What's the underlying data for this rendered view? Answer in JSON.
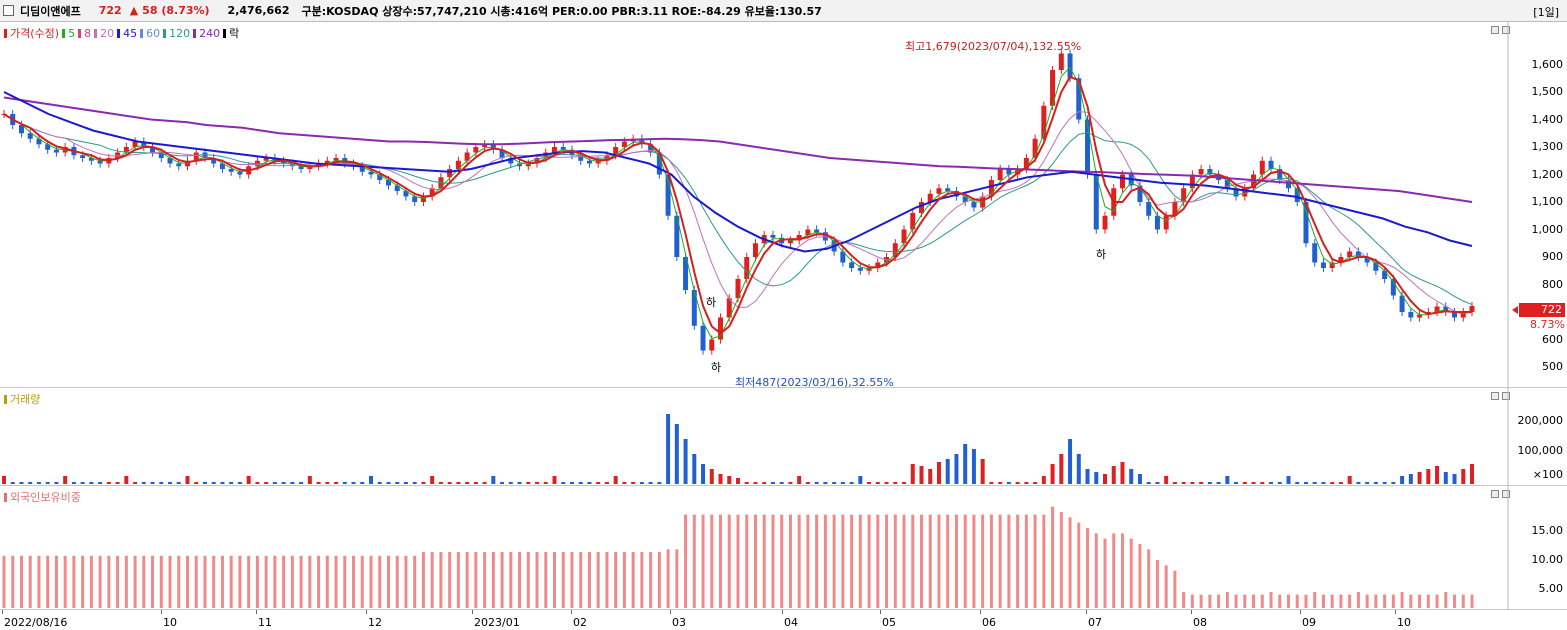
{
  "header": {
    "name": "디딤이앤에프",
    "price": "722",
    "arrow": "▲",
    "change": "58",
    "change_pct": "(8.73%)",
    "volume": "2,476,662",
    "info": "구분:KOSDAQ 상장수:57,747,210 시총:416억 PER:0.00 PBR:3.11 ROE:-84.29 유보율:130.57",
    "period": "[1일]"
  },
  "price_panel": {
    "legend": [
      {
        "label": "가격(수정)",
        "color": "#d61f1f"
      },
      {
        "label": "5",
        "color": "#22aa22"
      },
      {
        "label": "8",
        "color": "#e0407a"
      },
      {
        "label": "20",
        "color": "#c070c0"
      },
      {
        "label": "45",
        "color": "#1a1ad0"
      },
      {
        "label": "60",
        "color": "#6a8ad0"
      },
      {
        "label": "120",
        "color": "#2a9a8a"
      },
      {
        "label": "240",
        "color": "#8a2ab0"
      },
      {
        "label": "락",
        "color": "#000000"
      }
    ],
    "high_note": "최고1,679(2023/07/04),132.55%",
    "low_note": "최저487(2023/03/16),32.55%",
    "ha_marker": "하",
    "price_tag": "722",
    "pct_tag": "8.73%",
    "y_ticks": [
      "1,600",
      "1,500",
      "1,400",
      "1,300",
      "1,200",
      "1,100",
      "1,000",
      "900",
      "800",
      "700",
      "600",
      "500"
    ]
  },
  "volume_panel": {
    "label": "거래량",
    "y_ticks": [
      "200,000",
      "100,000",
      "×100"
    ]
  },
  "foreign_panel": {
    "label": "외국인보유비중",
    "y_ticks": [
      "15.00",
      "10.00",
      "5.00"
    ]
  },
  "x_labels": [
    "2022/08/16",
    "10",
    "11",
    "12",
    "2023/01",
    "02",
    "03",
    "04",
    "05",
    "06",
    "07",
    "08",
    "09",
    "10"
  ],
  "chart_data": {
    "type": "candlestick",
    "ylim": [
      460,
      1700
    ],
    "close_series": [
      1420,
      1380,
      1350,
      1330,
      1310,
      1290,
      1280,
      1300,
      1270,
      1260,
      1250,
      1240,
      1260,
      1280,
      1300,
      1320,
      1300,
      1280,
      1260,
      1240,
      1230,
      1250,
      1280,
      1260,
      1240,
      1220,
      1210,
      1200,
      1230,
      1250,
      1260,
      1250,
      1240,
      1230,
      1220,
      1230,
      1240,
      1250,
      1260,
      1240,
      1230,
      1210,
      1200,
      1180,
      1160,
      1140,
      1120,
      1100,
      1120,
      1150,
      1190,
      1220,
      1250,
      1280,
      1300,
      1310,
      1290,
      1260,
      1240,
      1230,
      1240,
      1260,
      1280,
      1300,
      1290,
      1270,
      1250,
      1240,
      1250,
      1270,
      1300,
      1320,
      1330,
      1310,
      1280,
      1200,
      1050,
      900,
      780,
      650,
      560,
      600,
      680,
      750,
      820,
      900,
      950,
      980,
      970,
      950,
      960,
      980,
      1000,
      990,
      960,
      920,
      880,
      860,
      850,
      860,
      880,
      900,
      950,
      1000,
      1060,
      1100,
      1130,
      1150,
      1140,
      1120,
      1100,
      1080,
      1120,
      1180,
      1220,
      1200,
      1220,
      1260,
      1330,
      1450,
      1580,
      1640,
      1550,
      1400,
      1200,
      1000,
      1050,
      1150,
      1200,
      1160,
      1100,
      1050,
      1000,
      1050,
      1100,
      1150,
      1200,
      1220,
      1200,
      1180,
      1150,
      1120,
      1150,
      1200,
      1250,
      1220,
      1180,
      1150,
      1100,
      950,
      880,
      860,
      880,
      900,
      920,
      900,
      880,
      850,
      820,
      760,
      700,
      680,
      690,
      700,
      720,
      700,
      680,
      700,
      722
    ],
    "ma240": [
      1480,
      1470,
      1460,
      1450,
      1440,
      1430,
      1420,
      1410,
      1400,
      1395,
      1390,
      1380,
      1375,
      1370,
      1360,
      1350,
      1345,
      1340,
      1335,
      1330,
      1325,
      1320,
      1320,
      1318,
      1315,
      1312,
      1310,
      1310,
      1312,
      1315,
      1318,
      1320,
      1322,
      1325,
      1326,
      1328,
      1330,
      1328,
      1325,
      1320,
      1310,
      1300,
      1290,
      1280,
      1270,
      1260,
      1255,
      1250,
      1245,
      1240,
      1235,
      1230,
      1228,
      1225,
      1222,
      1220,
      1218,
      1215,
      1212,
      1210,
      1208,
      1205,
      1202,
      1200,
      1198,
      1195,
      1190,
      1185,
      1180,
      1175,
      1170,
      1165,
      1160,
      1155,
      1150,
      1145,
      1140,
      1130,
      1120,
      1110,
      1100
    ],
    "ma45": [
      1500,
      1460,
      1420,
      1390,
      1360,
      1340,
      1320,
      1310,
      1300,
      1290,
      1280,
      1270,
      1260,
      1250,
      1240,
      1235,
      1230,
      1225,
      1220,
      1215,
      1210,
      1220,
      1240,
      1260,
      1270,
      1280,
      1285,
      1280,
      1260,
      1240,
      1200,
      1120,
      1060,
      1010,
      970,
      940,
      920,
      930,
      960,
      1000,
      1040,
      1080,
      1110,
      1130,
      1150,
      1170,
      1190,
      1200,
      1210,
      1200,
      1190,
      1180,
      1170,
      1165,
      1160,
      1150,
      1140,
      1130,
      1120,
      1100,
      1080,
      1060,
      1040,
      1010,
      990,
      960,
      940
    ]
  }
}
